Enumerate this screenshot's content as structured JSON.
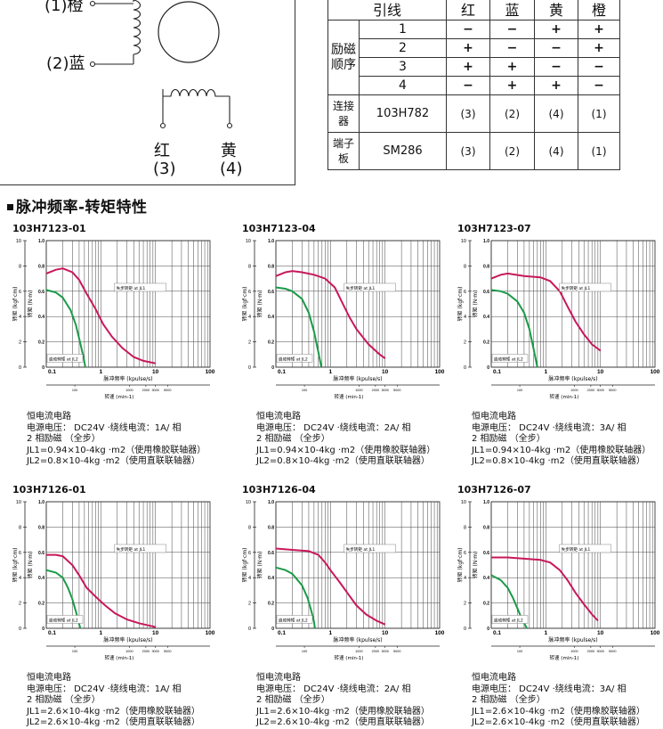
{
  "wiring": {
    "labels": {
      "orange": "(1)橙",
      "blue": "(2)蓝",
      "red": "红",
      "red_num": "(3)",
      "yellow": "黄",
      "yellow_num": "(4)"
    },
    "table": {
      "headers": [
        "引线",
        "红",
        "蓝",
        "黄",
        "橙"
      ],
      "excitation_label": "励磁顺序",
      "excitation_rows": [
        {
          "step": "1",
          "cells": [
            "−",
            "−",
            "+",
            "+"
          ]
        },
        {
          "step": "2",
          "cells": [
            "+",
            "−",
            "−",
            "+"
          ]
        },
        {
          "step": "3",
          "cells": [
            "+",
            "+",
            "−",
            "−"
          ]
        },
        {
          "step": "4",
          "cells": [
            "−",
            "+",
            "+",
            "−"
          ]
        }
      ],
      "connector_rows": [
        {
          "group": "连接器",
          "model": "103H782",
          "cells": [
            "(3)",
            "(2)",
            "(4)",
            "(1)"
          ]
        },
        {
          "group": "端子板",
          "model": "SM286",
          "cells": [
            "(3)",
            "(2)",
            "(4)",
            "(1)"
          ]
        }
      ]
    }
  },
  "section_title": "脉冲频率-转矩特性",
  "chart_common": {
    "y_left_label": "转矩 (kgf·cm)",
    "y_right_label": "转矩 (N·m)",
    "x_label": "脉冲频率 (kpulse/s)",
    "x2_label": "转速 (min-1)",
    "x_ticks": [
      "0.1",
      "1",
      "10",
      "100"
    ],
    "x2_ticks": [
      "100",
      "1000",
      "2000",
      "3000",
      "5000"
    ],
    "jl1_label": "失步转矩 at JL1",
    "jl2_label": "启动转矩 at JL2",
    "x_scale": "log",
    "grid": true
  },
  "chart_data": [
    {
      "type": "line",
      "title": "103H7123-01",
      "ylim": [
        0,
        1.0
      ],
      "y_ticks": [
        "0",
        "0.2",
        "0.4",
        "0.6",
        "0.8",
        "1.0"
      ],
      "y_left_ticks": [
        "0",
        "2",
        "4",
        "6",
        "8",
        "10"
      ],
      "series": [
        {
          "name": "失步转矩 at JL1",
          "color": "#c8185a",
          "points": [
            [
              0.1,
              0.74
            ],
            [
              0.15,
              0.77
            ],
            [
              0.2,
              0.78
            ],
            [
              0.3,
              0.75
            ],
            [
              0.4,
              0.69
            ],
            [
              0.55,
              0.58
            ],
            [
              0.8,
              0.46
            ],
            [
              1.1,
              0.34
            ],
            [
              1.6,
              0.24
            ],
            [
              2.5,
              0.15
            ],
            [
              4,
              0.08
            ],
            [
              6,
              0.05
            ],
            [
              10,
              0.03
            ]
          ]
        },
        {
          "name": "启动转矩 at JL2",
          "color": "#1a9a48",
          "points": [
            [
              0.1,
              0.61
            ],
            [
              0.15,
              0.59
            ],
            [
              0.2,
              0.55
            ],
            [
              0.28,
              0.45
            ],
            [
              0.35,
              0.33
            ],
            [
              0.42,
              0.19
            ],
            [
              0.48,
              0.08
            ],
            [
              0.52,
              0.0
            ]
          ]
        }
      ],
      "notes": [
        "恒电流电路",
        "电源电压： DC24V ·绕线电流：1A/ 相",
        "2 相励磁 （全步）",
        "JL1=0.94×10-4kg ·m2（使用橡胶联轴器）",
        "JL2=0.8×10-4kg ·m2（使用直联联轴器）"
      ]
    },
    {
      "type": "line",
      "title": "103H7123-04",
      "ylim": [
        0,
        1.0
      ],
      "y_ticks": [
        "0",
        "0.2",
        "0.4",
        "0.6",
        "0.8",
        "1.0"
      ],
      "y_left_ticks": [
        "0",
        "2",
        "4",
        "6",
        "8",
        "10"
      ],
      "series": [
        {
          "name": "失步转矩 at JL1",
          "color": "#c8185a",
          "points": [
            [
              0.1,
              0.72
            ],
            [
              0.15,
              0.75
            ],
            [
              0.2,
              0.76
            ],
            [
              0.3,
              0.75
            ],
            [
              0.5,
              0.73
            ],
            [
              0.8,
              0.7
            ],
            [
              1.2,
              0.63
            ],
            [
              1.6,
              0.52
            ],
            [
              2.2,
              0.4
            ],
            [
              3,
              0.3
            ],
            [
              5,
              0.18
            ],
            [
              8,
              0.1
            ],
            [
              10,
              0.07
            ]
          ]
        },
        {
          "name": "启动转矩 at JL2",
          "color": "#1a9a48",
          "points": [
            [
              0.1,
              0.63
            ],
            [
              0.15,
              0.62
            ],
            [
              0.2,
              0.6
            ],
            [
              0.3,
              0.54
            ],
            [
              0.4,
              0.43
            ],
            [
              0.5,
              0.28
            ],
            [
              0.6,
              0.12
            ],
            [
              0.68,
              0.0
            ]
          ]
        }
      ],
      "notes": [
        "恒电流电路",
        "电源电压： DC24V ·绕线电流：2A/ 相",
        "2 相励磁 （全步）",
        "JL1=0.94×10-4kg ·m2（使用橡胶联轴器）",
        "JL2=0.8×10-4kg ·m2（使用直联联轴器）"
      ]
    },
    {
      "type": "line",
      "title": "103H7123-07",
      "ylim": [
        0,
        1.0
      ],
      "y_ticks": [
        "0",
        "0.2",
        "0.4",
        "0.6",
        "0.8",
        "1.0"
      ],
      "y_left_ticks": [
        "0",
        "2",
        "4",
        "6",
        "8",
        "10"
      ],
      "series": [
        {
          "name": "失步转矩 at JL1",
          "color": "#c8185a",
          "points": [
            [
              0.1,
              0.7
            ],
            [
              0.15,
              0.73
            ],
            [
              0.2,
              0.74
            ],
            [
              0.4,
              0.72
            ],
            [
              0.8,
              0.71
            ],
            [
              1.2,
              0.68
            ],
            [
              1.8,
              0.6
            ],
            [
              2.5,
              0.48
            ],
            [
              3.5,
              0.36
            ],
            [
              5,
              0.26
            ],
            [
              7,
              0.18
            ],
            [
              10,
              0.13
            ]
          ]
        },
        {
          "name": "启动转矩 at JL2",
          "color": "#1a9a48",
          "points": [
            [
              0.1,
              0.61
            ],
            [
              0.15,
              0.6
            ],
            [
              0.2,
              0.58
            ],
            [
              0.3,
              0.52
            ],
            [
              0.4,
              0.43
            ],
            [
              0.5,
              0.3
            ],
            [
              0.6,
              0.14
            ],
            [
              0.7,
              0.0
            ]
          ]
        }
      ],
      "notes": [
        "恒电流电路",
        "电源电压： DC24V ·绕线电流：3A/ 相",
        "2 相励磁 （全步）",
        "JL1=0.94×10-4kg ·m2（使用橡胶联轴器）",
        "JL2=0.8×10-4kg ·m2（使用直联联轴器）"
      ]
    },
    {
      "type": "line",
      "title": "103H7126-01",
      "ylim": [
        0,
        1.0
      ],
      "y_ticks": [
        "0",
        "0.2",
        "0.4",
        "0.6",
        "0.8",
        "1.0"
      ],
      "y_left_ticks": [
        "0",
        "2",
        "4",
        "6",
        "8",
        "10"
      ],
      "series": [
        {
          "name": "失步转矩 at JL1",
          "color": "#c8185a",
          "points": [
            [
              0.1,
              0.58
            ],
            [
              0.15,
              0.58
            ],
            [
              0.2,
              0.57
            ],
            [
              0.3,
              0.5
            ],
            [
              0.4,
              0.42
            ],
            [
              0.55,
              0.32
            ],
            [
              0.8,
              0.25
            ],
            [
              1.2,
              0.18
            ],
            [
              1.8,
              0.12
            ],
            [
              3,
              0.07
            ],
            [
              5,
              0.04
            ],
            [
              8,
              0.02
            ],
            [
              10,
              0.01
            ]
          ]
        },
        {
          "name": "启动转矩 at JL2",
          "color": "#1a9a48",
          "points": [
            [
              0.1,
              0.46
            ],
            [
              0.15,
              0.44
            ],
            [
              0.2,
              0.4
            ],
            [
              0.25,
              0.32
            ],
            [
              0.3,
              0.23
            ],
            [
              0.35,
              0.13
            ],
            [
              0.38,
              0.07
            ],
            [
              0.42,
              0.0
            ]
          ]
        }
      ],
      "notes": [
        "恒电流电路",
        "电源电压： DC24V ·绕线电流：1A/ 相",
        "2 相励磁 （全步）",
        "JL1=2.6×10-4kg ·m2（使用橡胶联轴器）",
        "JL2=2.6×10-4kg ·m2（使用直联联轴器）"
      ]
    },
    {
      "type": "line",
      "title": "103H7126-04",
      "ylim": [
        0,
        1.0
      ],
      "y_ticks": [
        "0",
        "0.2",
        "0.4",
        "0.6",
        "0.8",
        "1.0"
      ],
      "y_left_ticks": [
        "0",
        "2",
        "4",
        "6",
        "8",
        "10"
      ],
      "series": [
        {
          "name": "失步转矩 at JL1",
          "color": "#c8185a",
          "points": [
            [
              0.1,
              0.63
            ],
            [
              0.2,
              0.62
            ],
            [
              0.4,
              0.61
            ],
            [
              0.6,
              0.58
            ],
            [
              0.8,
              0.52
            ],
            [
              1.0,
              0.46
            ],
            [
              1.5,
              0.36
            ],
            [
              2.2,
              0.26
            ],
            [
              3,
              0.18
            ],
            [
              4.5,
              0.11
            ],
            [
              7,
              0.06
            ],
            [
              10,
              0.03
            ]
          ]
        },
        {
          "name": "启动转矩 at JL2",
          "color": "#1a9a48",
          "points": [
            [
              0.1,
              0.48
            ],
            [
              0.15,
              0.46
            ],
            [
              0.2,
              0.43
            ],
            [
              0.3,
              0.34
            ],
            [
              0.38,
              0.24
            ],
            [
              0.45,
              0.13
            ],
            [
              0.5,
              0.05
            ],
            [
              0.52,
              0.0
            ]
          ]
        }
      ],
      "notes": [
        "恒电流电路",
        "电源电压： DC24V ·绕线电流：2A/ 相",
        "2 相励磁 （全步）",
        "JL1=2.6×10-4kg ·m2（使用橡胶联轴器）",
        "JL2=2.6×10-4kg ·m2（使用直联联轴器）"
      ]
    },
    {
      "type": "line",
      "title": "103H7126-07",
      "ylim": [
        0,
        1.0
      ],
      "y_ticks": [
        "0",
        "0.2",
        "0.4",
        "0.6",
        "0.8",
        "1.0"
      ],
      "y_left_ticks": [
        "0",
        "2",
        "4",
        "6",
        "8",
        "10"
      ],
      "series": [
        {
          "name": "失步转矩 at JL1",
          "color": "#c8185a",
          "points": [
            [
              0.1,
              0.56
            ],
            [
              0.2,
              0.56
            ],
            [
              0.4,
              0.55
            ],
            [
              0.8,
              0.54
            ],
            [
              1.2,
              0.52
            ],
            [
              1.8,
              0.46
            ],
            [
              2.5,
              0.38
            ],
            [
              3.5,
              0.28
            ],
            [
              5,
              0.19
            ],
            [
              7,
              0.11
            ],
            [
              9,
              0.06
            ]
          ]
        },
        {
          "name": "启动转矩 at JL2",
          "color": "#1a9a48",
          "points": [
            [
              0.1,
              0.42
            ],
            [
              0.15,
              0.38
            ],
            [
              0.2,
              0.32
            ],
            [
              0.25,
              0.24
            ],
            [
              0.3,
              0.16
            ],
            [
              0.35,
              0.09
            ],
            [
              0.4,
              0.04
            ],
            [
              0.45,
              0.0
            ]
          ]
        }
      ],
      "notes": [
        "恒电流电路",
        "电源电压： DC24V ·绕线电流：3A/ 相",
        "2 相励磁 （全步）",
        "JL1=2.6×10-4kg ·m2（使用橡胶联轴器）",
        "JL2=2.6×10-4kg ·m2（使用直联联轴器）"
      ]
    }
  ]
}
